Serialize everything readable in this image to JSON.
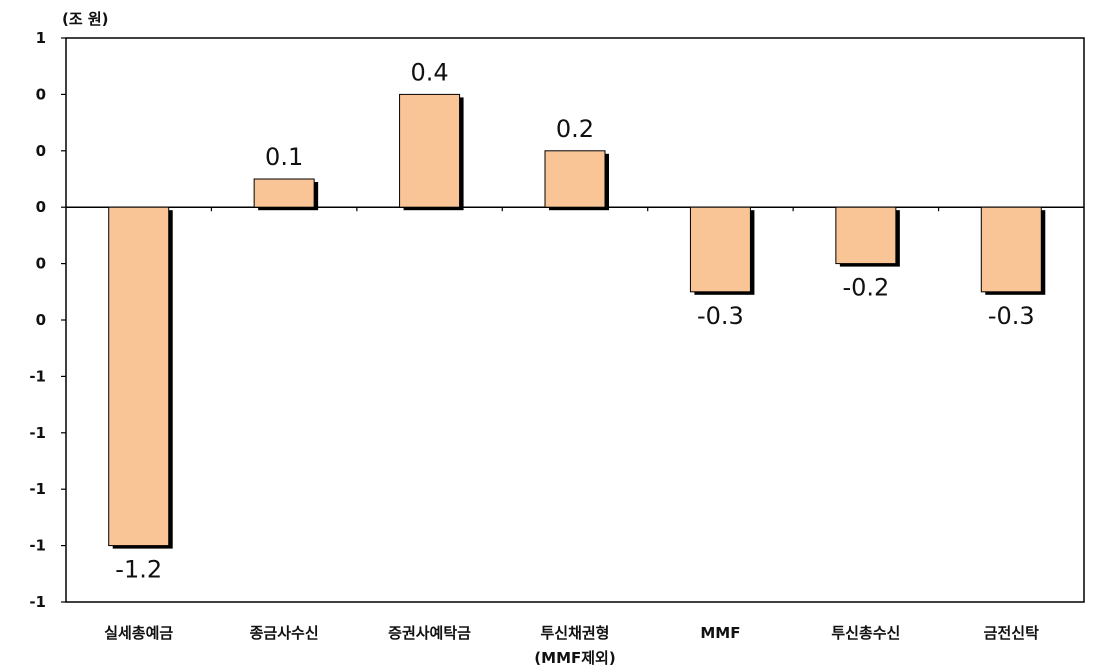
{
  "chart_data": {
    "type": "bar",
    "unit_label": "(조 원)",
    "categories": [
      "실세총예금",
      "종금사수신",
      "증권사예탁금",
      "투신채권형",
      "MMF",
      "투신총수신",
      "금전신탁"
    ],
    "category_sublabels": [
      "",
      "",
      "",
      "(MMF제외)",
      "",
      "",
      ""
    ],
    "values": [
      -1.2,
      0.1,
      0.4,
      0.2,
      -0.3,
      -0.2,
      -0.3
    ],
    "value_labels": [
      "-1.2",
      "0.1",
      "0.4",
      "0.2",
      "-0.3",
      "-0.2",
      "-0.3"
    ],
    "ylim": [
      -1.4,
      0.6
    ],
    "yticks": [
      0.6,
      0.4,
      0.2,
      0.0,
      -0.2,
      -0.4,
      -0.6,
      -0.8,
      -1.0,
      -1.2,
      -1.4
    ],
    "ytick_labels": [
      "1",
      "0",
      "0",
      "0",
      "0",
      "0",
      "-1",
      "-1",
      "-1",
      "-1",
      "-1"
    ],
    "grid": false,
    "legend": "none",
    "colors": {
      "bar_fill": "#f9c597",
      "bar_shadow": "#000000",
      "frame": "#000000"
    }
  }
}
